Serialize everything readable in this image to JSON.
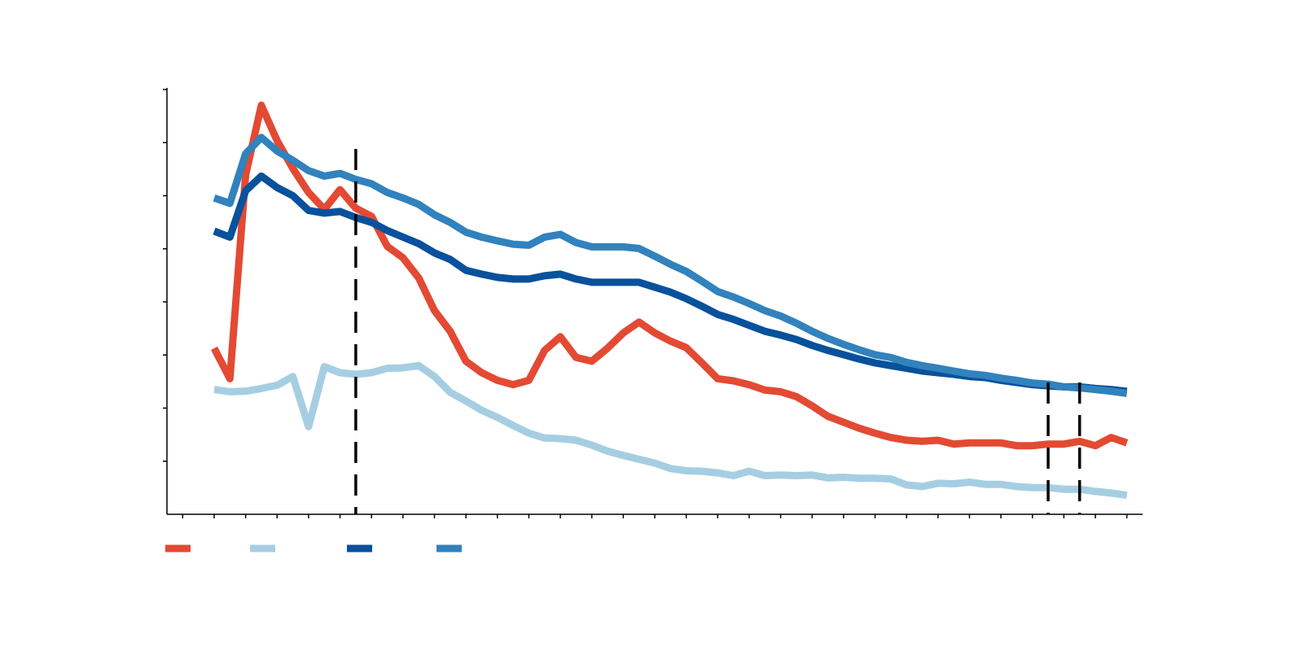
{
  "chart_data": {
    "type": "line",
    "title": "",
    "xlabel": "",
    "ylabel": "",
    "xlim": [
      0,
      62
    ],
    "ylim": [
      0,
      78
    ],
    "grid": false,
    "legend_position": "bottom-left",
    "x_tick_count": 31,
    "y_tick_count": 8,
    "vertical_lines": [
      12,
      56,
      58
    ],
    "series": [
      {
        "color": "#e34a33",
        "values": [
          [
            3,
            30.5
          ],
          [
            4,
            24.9
          ],
          [
            5,
            62.3
          ],
          [
            6,
            75.1
          ],
          [
            7,
            68.6
          ],
          [
            8,
            63.5
          ],
          [
            9,
            59.1
          ],
          [
            10,
            56.0
          ],
          [
            11,
            59.6
          ],
          [
            12,
            56.2
          ],
          [
            13,
            54.7
          ],
          [
            14,
            49.2
          ],
          [
            15,
            47.1
          ],
          [
            16,
            43.4
          ],
          [
            17,
            37.4
          ],
          [
            18,
            33.6
          ],
          [
            19,
            28.1
          ],
          [
            20,
            26.0
          ],
          [
            21,
            24.6
          ],
          [
            22,
            23.8
          ],
          [
            23,
            24.6
          ],
          [
            24,
            30.1
          ],
          [
            25,
            32.6
          ],
          [
            26,
            28.8
          ],
          [
            27,
            28.1
          ],
          [
            28,
            30.5
          ],
          [
            29,
            33.3
          ],
          [
            30,
            35.3
          ],
          [
            31,
            33.3
          ],
          [
            32,
            31.8
          ],
          [
            33,
            30.6
          ],
          [
            34,
            27.8
          ],
          [
            35,
            24.9
          ],
          [
            36,
            24.5
          ],
          [
            37,
            23.8
          ],
          [
            38,
            22.8
          ],
          [
            39,
            22.5
          ],
          [
            40,
            21.6
          ],
          [
            41,
            19.9
          ],
          [
            42,
            18.0
          ],
          [
            43,
            16.9
          ],
          [
            44,
            15.8
          ],
          [
            45,
            14.9
          ],
          [
            46,
            14.1
          ],
          [
            47,
            13.6
          ],
          [
            48,
            13.4
          ],
          [
            49,
            13.6
          ],
          [
            50,
            12.9
          ],
          [
            51,
            13.1
          ],
          [
            52,
            13.1
          ],
          [
            53,
            13.1
          ],
          [
            54,
            12.6
          ],
          [
            55,
            12.6
          ],
          [
            56,
            12.9
          ],
          [
            57,
            12.9
          ],
          [
            58,
            13.4
          ],
          [
            59,
            12.6
          ],
          [
            60,
            14.1
          ],
          [
            61,
            13.1
          ]
        ]
      },
      {
        "color": "#a6cee3",
        "values": [
          [
            3,
            22.9
          ],
          [
            4,
            22.5
          ],
          [
            5,
            22.6
          ],
          [
            6,
            23.1
          ],
          [
            7,
            23.7
          ],
          [
            8,
            25.3
          ],
          [
            9,
            16.1
          ],
          [
            10,
            27.1
          ],
          [
            11,
            26.0
          ],
          [
            12,
            25.7
          ],
          [
            13,
            26.0
          ],
          [
            14,
            26.8
          ],
          [
            15,
            26.9
          ],
          [
            16,
            27.3
          ],
          [
            17,
            25.3
          ],
          [
            18,
            22.4
          ],
          [
            19,
            20.8
          ],
          [
            20,
            19.1
          ],
          [
            21,
            17.8
          ],
          [
            22,
            16.3
          ],
          [
            23,
            14.9
          ],
          [
            24,
            14.0
          ],
          [
            25,
            13.9
          ],
          [
            26,
            13.6
          ],
          [
            27,
            12.7
          ],
          [
            28,
            11.6
          ],
          [
            29,
            10.8
          ],
          [
            30,
            10.1
          ],
          [
            31,
            9.4
          ],
          [
            32,
            8.4
          ],
          [
            33,
            8.0
          ],
          [
            34,
            7.9
          ],
          [
            35,
            7.6
          ],
          [
            36,
            7.1
          ],
          [
            37,
            7.9
          ],
          [
            38,
            7.1
          ],
          [
            39,
            7.2
          ],
          [
            40,
            7.1
          ],
          [
            41,
            7.2
          ],
          [
            42,
            6.7
          ],
          [
            43,
            6.8
          ],
          [
            44,
            6.6
          ],
          [
            45,
            6.6
          ],
          [
            46,
            6.5
          ],
          [
            47,
            5.4
          ],
          [
            48,
            5.1
          ],
          [
            49,
            5.7
          ],
          [
            50,
            5.6
          ],
          [
            51,
            5.9
          ],
          [
            52,
            5.5
          ],
          [
            53,
            5.5
          ],
          [
            54,
            5.1
          ],
          [
            55,
            4.9
          ],
          [
            56,
            4.9
          ],
          [
            57,
            4.6
          ],
          [
            58,
            4.6
          ],
          [
            59,
            4.2
          ],
          [
            60,
            3.9
          ],
          [
            61,
            3.5
          ]
        ]
      },
      {
        "color": "#08519c",
        "values": [
          [
            3,
            52.0
          ],
          [
            4,
            50.9
          ],
          [
            5,
            59.4
          ],
          [
            6,
            62.1
          ],
          [
            7,
            60.0
          ],
          [
            8,
            58.5
          ],
          [
            9,
            55.8
          ],
          [
            10,
            55.3
          ],
          [
            11,
            55.6
          ],
          [
            12,
            54.5
          ],
          [
            13,
            53.6
          ],
          [
            14,
            52.1
          ],
          [
            15,
            50.9
          ],
          [
            16,
            49.7
          ],
          [
            17,
            48.0
          ],
          [
            18,
            46.8
          ],
          [
            19,
            44.8
          ],
          [
            20,
            44.1
          ],
          [
            21,
            43.5
          ],
          [
            22,
            43.2
          ],
          [
            23,
            43.2
          ],
          [
            24,
            43.8
          ],
          [
            25,
            44.1
          ],
          [
            26,
            43.2
          ],
          [
            27,
            42.6
          ],
          [
            28,
            42.6
          ],
          [
            29,
            42.6
          ],
          [
            30,
            42.6
          ],
          [
            31,
            41.7
          ],
          [
            32,
            40.8
          ],
          [
            33,
            39.6
          ],
          [
            34,
            38.2
          ],
          [
            35,
            36.7
          ],
          [
            36,
            35.8
          ],
          [
            37,
            34.7
          ],
          [
            38,
            33.6
          ],
          [
            39,
            32.9
          ],
          [
            40,
            32.1
          ],
          [
            41,
            31.0
          ],
          [
            42,
            30.1
          ],
          [
            43,
            29.3
          ],
          [
            44,
            28.5
          ],
          [
            45,
            27.8
          ],
          [
            46,
            27.3
          ],
          [
            47,
            26.8
          ],
          [
            48,
            26.3
          ],
          [
            49,
            26.0
          ],
          [
            50,
            25.7
          ],
          [
            51,
            25.3
          ],
          [
            52,
            25.1
          ],
          [
            53,
            24.6
          ],
          [
            54,
            24.2
          ],
          [
            55,
            23.8
          ],
          [
            56,
            23.6
          ],
          [
            57,
            23.4
          ],
          [
            58,
            23.4
          ],
          [
            59,
            23.1
          ],
          [
            60,
            22.9
          ],
          [
            61,
            22.6
          ]
        ]
      },
      {
        "color": "#3182bd",
        "values": [
          [
            3,
            58.1
          ],
          [
            4,
            57.1
          ],
          [
            5,
            66.2
          ],
          [
            6,
            69.2
          ],
          [
            7,
            66.7
          ],
          [
            8,
            65.0
          ],
          [
            9,
            63.1
          ],
          [
            10,
            62.1
          ],
          [
            11,
            62.6
          ],
          [
            12,
            61.5
          ],
          [
            13,
            60.7
          ],
          [
            14,
            59.1
          ],
          [
            15,
            58.1
          ],
          [
            16,
            56.9
          ],
          [
            17,
            55.0
          ],
          [
            18,
            53.6
          ],
          [
            19,
            51.8
          ],
          [
            20,
            50.9
          ],
          [
            21,
            50.2
          ],
          [
            22,
            49.6
          ],
          [
            23,
            49.4
          ],
          [
            24,
            50.9
          ],
          [
            25,
            51.4
          ],
          [
            26,
            49.9
          ],
          [
            27,
            49.1
          ],
          [
            28,
            49.1
          ],
          [
            29,
            49.1
          ],
          [
            30,
            48.8
          ],
          [
            31,
            47.4
          ],
          [
            32,
            45.9
          ],
          [
            33,
            44.6
          ],
          [
            34,
            42.8
          ],
          [
            35,
            40.9
          ],
          [
            36,
            39.9
          ],
          [
            37,
            38.7
          ],
          [
            38,
            37.4
          ],
          [
            39,
            36.4
          ],
          [
            40,
            35.1
          ],
          [
            41,
            33.6
          ],
          [
            42,
            32.3
          ],
          [
            43,
            31.2
          ],
          [
            44,
            30.2
          ],
          [
            45,
            29.3
          ],
          [
            46,
            28.8
          ],
          [
            47,
            27.9
          ],
          [
            48,
            27.3
          ],
          [
            49,
            26.8
          ],
          [
            50,
            26.3
          ],
          [
            51,
            25.8
          ],
          [
            52,
            25.5
          ],
          [
            53,
            25.0
          ],
          [
            54,
            24.6
          ],
          [
            55,
            24.1
          ],
          [
            56,
            23.9
          ],
          [
            57,
            23.4
          ],
          [
            58,
            23.2
          ],
          [
            59,
            22.9
          ],
          [
            60,
            22.6
          ],
          [
            61,
            22.2
          ]
        ]
      }
    ]
  }
}
